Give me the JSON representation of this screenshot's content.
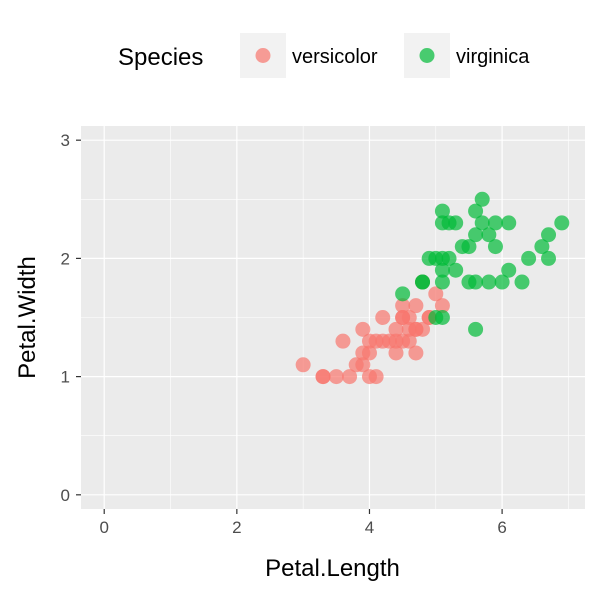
{
  "chart_data": {
    "type": "scatter",
    "xlabel": "Petal.Length",
    "ylabel": "Petal.Width",
    "xlim": [
      -0.35,
      7.25
    ],
    "ylim": [
      -0.12,
      3.12
    ],
    "x_ticks": [
      0,
      2,
      4,
      6
    ],
    "y_ticks": [
      0,
      1,
      2,
      3
    ],
    "grid": true,
    "legend": {
      "title": "Species",
      "placement": "top"
    },
    "series": [
      {
        "name": "versicolor",
        "color": "#F8766D",
        "points": [
          [
            3.0,
            1.1
          ],
          [
            3.3,
            1.0
          ],
          [
            3.3,
            1.0
          ],
          [
            3.5,
            1.0
          ],
          [
            3.6,
            1.3
          ],
          [
            3.7,
            1.0
          ],
          [
            3.8,
            1.1
          ],
          [
            3.9,
            1.4
          ],
          [
            3.9,
            1.2
          ],
          [
            3.9,
            1.1
          ],
          [
            4.0,
            1.0
          ],
          [
            4.0,
            1.3
          ],
          [
            4.0,
            1.2
          ],
          [
            4.1,
            1.0
          ],
          [
            4.1,
            1.3
          ],
          [
            4.2,
            1.5
          ],
          [
            4.2,
            1.3
          ],
          [
            4.3,
            1.3
          ],
          [
            4.4,
            1.4
          ],
          [
            4.4,
            1.3
          ],
          [
            4.4,
            1.2
          ],
          [
            4.5,
            1.5
          ],
          [
            4.5,
            1.6
          ],
          [
            4.5,
            1.3
          ],
          [
            4.5,
            1.5
          ],
          [
            4.6,
            1.5
          ],
          [
            4.6,
            1.4
          ],
          [
            4.6,
            1.3
          ],
          [
            4.7,
            1.4
          ],
          [
            4.7,
            1.6
          ],
          [
            4.7,
            1.2
          ],
          [
            4.7,
            1.4
          ],
          [
            4.8,
            1.4
          ],
          [
            4.8,
            1.8
          ],
          [
            4.9,
            1.5
          ],
          [
            4.9,
            1.5
          ],
          [
            5.0,
            1.7
          ],
          [
            5.1,
            1.6
          ]
        ]
      },
      {
        "name": "virginica",
        "color": "#00BA38",
        "points": [
          [
            4.5,
            1.7
          ],
          [
            4.8,
            1.8
          ],
          [
            4.8,
            1.8
          ],
          [
            4.9,
            2.0
          ],
          [
            5.0,
            2.0
          ],
          [
            5.0,
            1.5
          ],
          [
            5.1,
            1.8
          ],
          [
            5.1,
            1.9
          ],
          [
            5.1,
            2.4
          ],
          [
            5.1,
            2.3
          ],
          [
            5.1,
            2.0
          ],
          [
            5.1,
            1.5
          ],
          [
            5.2,
            2.3
          ],
          [
            5.2,
            2.0
          ],
          [
            5.3,
            2.3
          ],
          [
            5.3,
            1.9
          ],
          [
            5.4,
            2.1
          ],
          [
            5.5,
            2.1
          ],
          [
            5.5,
            1.8
          ],
          [
            5.6,
            2.4
          ],
          [
            5.6,
            2.2
          ],
          [
            5.6,
            1.8
          ],
          [
            5.6,
            1.4
          ],
          [
            5.7,
            2.5
          ],
          [
            5.7,
            2.3
          ],
          [
            5.8,
            2.2
          ],
          [
            5.8,
            1.8
          ],
          [
            5.9,
            2.3
          ],
          [
            5.9,
            2.1
          ],
          [
            6.0,
            1.8
          ],
          [
            6.1,
            2.3
          ],
          [
            6.1,
            1.9
          ],
          [
            6.3,
            1.8
          ],
          [
            6.4,
            2.0
          ],
          [
            6.6,
            2.1
          ],
          [
            6.7,
            2.2
          ],
          [
            6.7,
            2.0
          ],
          [
            6.9,
            2.3
          ]
        ]
      }
    ]
  }
}
